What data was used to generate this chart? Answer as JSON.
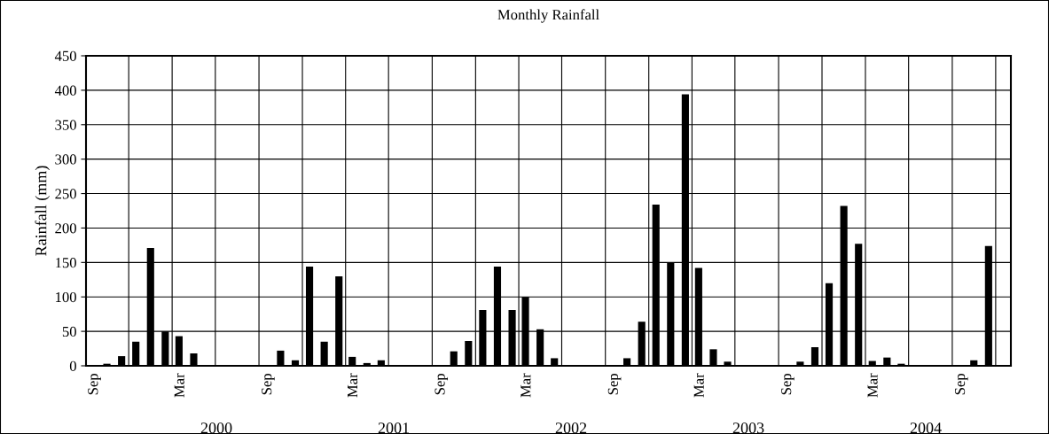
{
  "chart_data": {
    "type": "bar",
    "title": "Monthly Rainfall",
    "ylabel": "Rainfall (mm)",
    "x": [
      "1999-09-15",
      "1999-10-15",
      "1999-11-15",
      "1999-12-15",
      "2000-01-15",
      "2000-02-15",
      "2000-03-15",
      "2000-04-15",
      "2000-05-15",
      "2000-06-15",
      "2000-07-15",
      "2000-08-15",
      "2000-09-15",
      "2000-10-15",
      "2000-11-15",
      "2000-12-15",
      "2001-01-15",
      "2001-02-15",
      "2001-03-15",
      "2001-04-15",
      "2001-05-15",
      "2001-06-15",
      "2001-07-15",
      "2001-08-15",
      "2001-09-15",
      "2001-10-15",
      "2001-11-15",
      "2001-12-15",
      "2002-01-15",
      "2002-02-15",
      "2002-03-15",
      "2002-04-15",
      "2002-05-15",
      "2002-06-15",
      "2002-07-15",
      "2002-08-15",
      "2002-09-15",
      "2002-10-15",
      "2002-11-15",
      "2002-12-15",
      "2003-01-15",
      "2003-02-15",
      "2003-03-15",
      "2003-04-15",
      "2003-05-15",
      "2003-06-15",
      "2003-07-15",
      "2003-08-15",
      "2003-09-15",
      "2003-10-15",
      "2003-11-15",
      "2003-12-15",
      "2004-01-15",
      "2004-02-15",
      "2004-03-15",
      "2004-04-15",
      "2004-05-15",
      "2004-06-15",
      "2004-07-15",
      "2004-08-15",
      "2004-09-15",
      "2004-10-15",
      "2004-11-15",
      "2004-12-15"
    ],
    "values": [
      0,
      3,
      14,
      35,
      171,
      50,
      43,
      18,
      0,
      0,
      0,
      0,
      0,
      22,
      8,
      144,
      35,
      130,
      13,
      4,
      8,
      0,
      0,
      0,
      0,
      21,
      36,
      81,
      144,
      81,
      100,
      53,
      11,
      0,
      0,
      0,
      0,
      11,
      64,
      234,
      149,
      394,
      142,
      24,
      6,
      0,
      0,
      0,
      0,
      6,
      27,
      120,
      232,
      177,
      7,
      12,
      3,
      0,
      0,
      0,
      0,
      8,
      174,
      0
    ],
    "color": "#000000",
    "xlim": [
      "1999-09-01",
      "2005-01-01"
    ],
    "xticks": [
      {
        "value": "1999-09-15",
        "label": "Sep"
      },
      {
        "value": "2000-03-15",
        "label": "Mar"
      },
      {
        "value": "2000-09-15",
        "label": "Sep"
      },
      {
        "value": "2001-03-15",
        "label": "Mar"
      },
      {
        "value": "2001-09-15",
        "label": "Sep"
      },
      {
        "value": "2002-03-15",
        "label": "Mar"
      },
      {
        "value": "2002-09-15",
        "label": "Sep"
      },
      {
        "value": "2003-03-15",
        "label": "Mar"
      },
      {
        "value": "2003-09-15",
        "label": "Sep"
      },
      {
        "value": "2004-03-15",
        "label": "Mar"
      },
      {
        "value": "2004-09-15",
        "label": "Sep"
      }
    ],
    "ylim": [
      0,
      450
    ],
    "yticks": [
      0,
      50,
      100,
      150,
      200,
      250,
      300,
      350,
      400,
      450
    ],
    "grid": true,
    "annotations": [
      "2000",
      "2001",
      "2002",
      "2003",
      "2004"
    ]
  }
}
